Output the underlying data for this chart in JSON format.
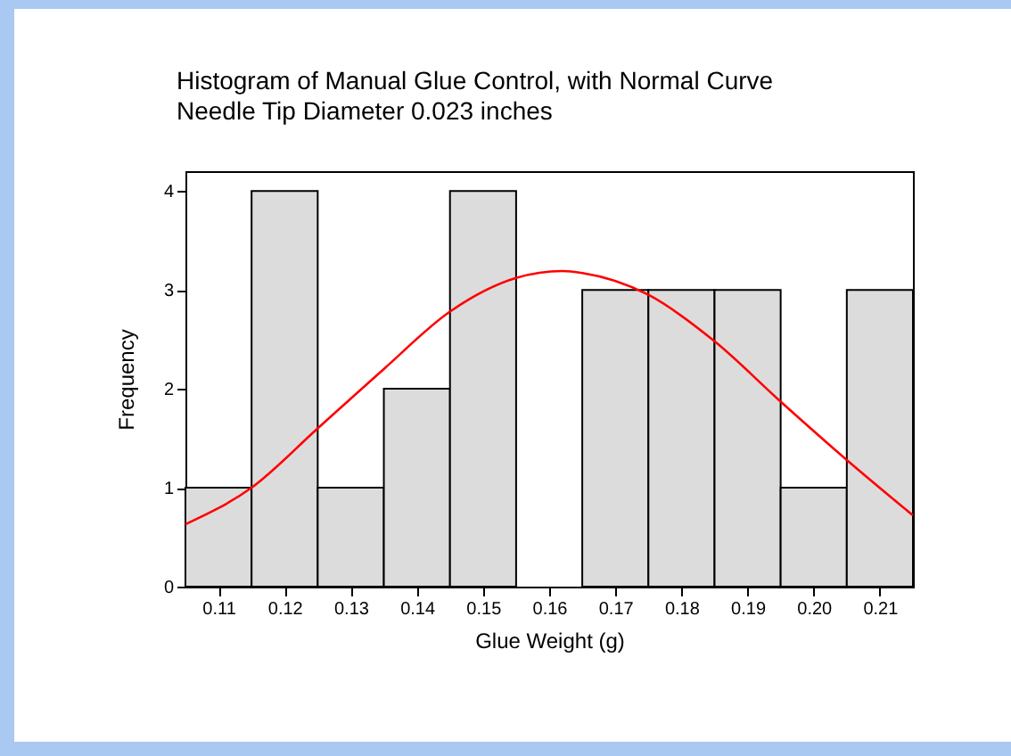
{
  "chart_data": {
    "type": "histogram",
    "title": "Histogram of Manual Glue Control, with Normal Curve",
    "subtitle": "Needle Tip Diameter 0.023 inches",
    "xlabel": "Glue Weight (g)",
    "ylabel": "Frequency",
    "bins": [
      0.105,
      0.115,
      0.125,
      0.135,
      0.145,
      0.155,
      0.165,
      0.175,
      0.185,
      0.195,
      0.205,
      0.215
    ],
    "series": [
      {
        "color": "#dcdcdc",
        "values": [
          1,
          4,
          1,
          2,
          4,
          0,
          3,
          3,
          3,
          1,
          3
        ]
      },
      {
        "type": "line",
        "color": "#ff0000",
        "x": [
          0.105,
          0.115,
          0.125,
          0.135,
          0.145,
          0.155,
          0.162,
          0.165,
          0.175,
          0.185,
          0.195,
          0.205,
          0.215
        ],
        "values": [
          0.63,
          1.0,
          1.6,
          2.2,
          2.78,
          3.12,
          3.19,
          3.17,
          2.95,
          2.48,
          1.87,
          1.28,
          0.72
        ]
      }
    ],
    "xlim": [
      0.105,
      0.215
    ],
    "xticks": [
      0.11,
      0.12,
      0.13,
      0.14,
      0.15,
      0.16,
      0.17,
      0.18,
      0.19,
      {
        "value": 0.2,
        "label": "0.20"
      },
      0.21
    ],
    "ylim": [
      0,
      4.2
    ],
    "yticks": [
      0,
      1,
      2,
      3,
      4
    ]
  }
}
